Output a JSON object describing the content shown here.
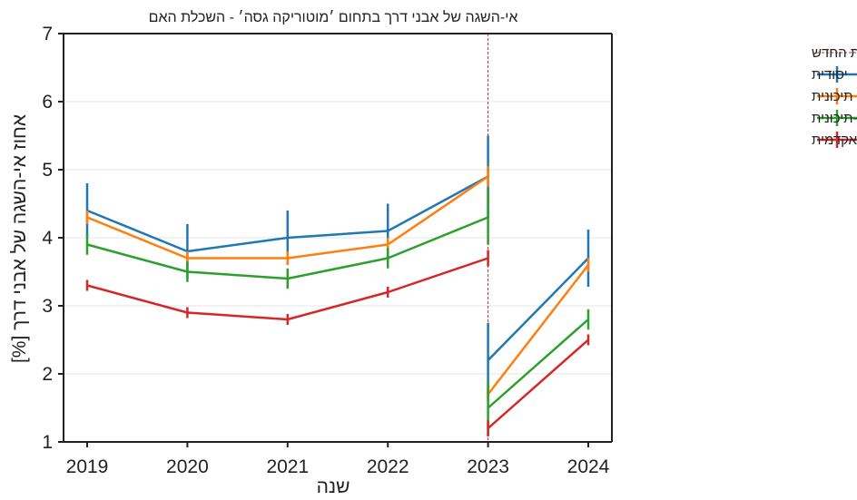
{
  "chart_data": {
    "type": "line",
    "title": "אי-השגה של אבני דרך בתחום ׳מוטוריקה גסה׳ - השכלת האם",
    "xlabel": "שנה",
    "ylabel": "אחוז אי-השגה של אבני דרך [%]",
    "x": [
      2019,
      2020,
      2021,
      2022,
      2023,
      2024
    ],
    "x_tick_labels": [
      "2019",
      "2020",
      "2021",
      "2022",
      "2023",
      "2024"
    ],
    "ylim": [
      1,
      7
    ],
    "y_ticks": [
      1,
      2,
      3,
      4,
      5,
      6,
      7
    ],
    "y_tick_labels": [
      "1",
      "2",
      "3",
      "4",
      "5",
      "6",
      "7"
    ],
    "grid": "horizontal",
    "legend_position": "outside-right-top",
    "annotation": {
      "type": "vertical-dashed-line",
      "label": "החלת נוהל ההתפתחות החדש",
      "color": "#d62728"
    },
    "series": [
      {
        "name": "יסודית",
        "color": "#1f77b4",
        "segments": [
          {
            "x": [
              2019,
              2020,
              2021,
              2022,
              2023
            ],
            "y": [
              4.4,
              3.8,
              4.0,
              4.1,
              4.9
            ],
            "err": [
              0.4,
              0.4,
              0.4,
              0.4,
              0.6
            ]
          },
          {
            "x": [
              2023,
              2024
            ],
            "y": [
              2.2,
              3.7
            ],
            "err": [
              0.55,
              0.42
            ]
          }
        ]
      },
      {
        "name": "תיכונית",
        "color": "#ff7f0e",
        "segments": [
          {
            "x": [
              2019,
              2020,
              2021,
              2022,
              2023
            ],
            "y": [
              4.3,
              3.7,
              3.7,
              3.9,
              4.9
            ],
            "err": [
              0.1,
              0.1,
              0.1,
              0.1,
              0.15
            ]
          },
          {
            "x": [
              2023,
              2024
            ],
            "y": [
              1.7,
              3.6
            ],
            "err": [
              0.1,
              0.1
            ]
          }
        ]
      },
      {
        "name": "על-תיכונית",
        "color": "#2ca02c",
        "segments": [
          {
            "x": [
              2019,
              2020,
              2021,
              2022,
              2023
            ],
            "y": [
              3.9,
              3.5,
              3.4,
              3.7,
              4.3
            ],
            "err": [
              0.15,
              0.15,
              0.15,
              0.15,
              0.4
            ]
          },
          {
            "x": [
              2023,
              2024
            ],
            "y": [
              1.5,
              2.8
            ],
            "err": [
              0.4,
              0.15
            ]
          }
        ]
      },
      {
        "name": "אקדמית",
        "color": "#d62728",
        "segments": [
          {
            "x": [
              2019,
              2020,
              2021,
              2022,
              2023
            ],
            "y": [
              3.3,
              2.9,
              2.8,
              3.2,
              3.7
            ],
            "err": [
              0.08,
              0.08,
              0.08,
              0.08,
              0.12
            ]
          },
          {
            "x": [
              2023,
              2024
            ],
            "y": [
              1.2,
              2.5
            ],
            "err": [
              0.12,
              0.08
            ]
          }
        ]
      }
    ]
  }
}
